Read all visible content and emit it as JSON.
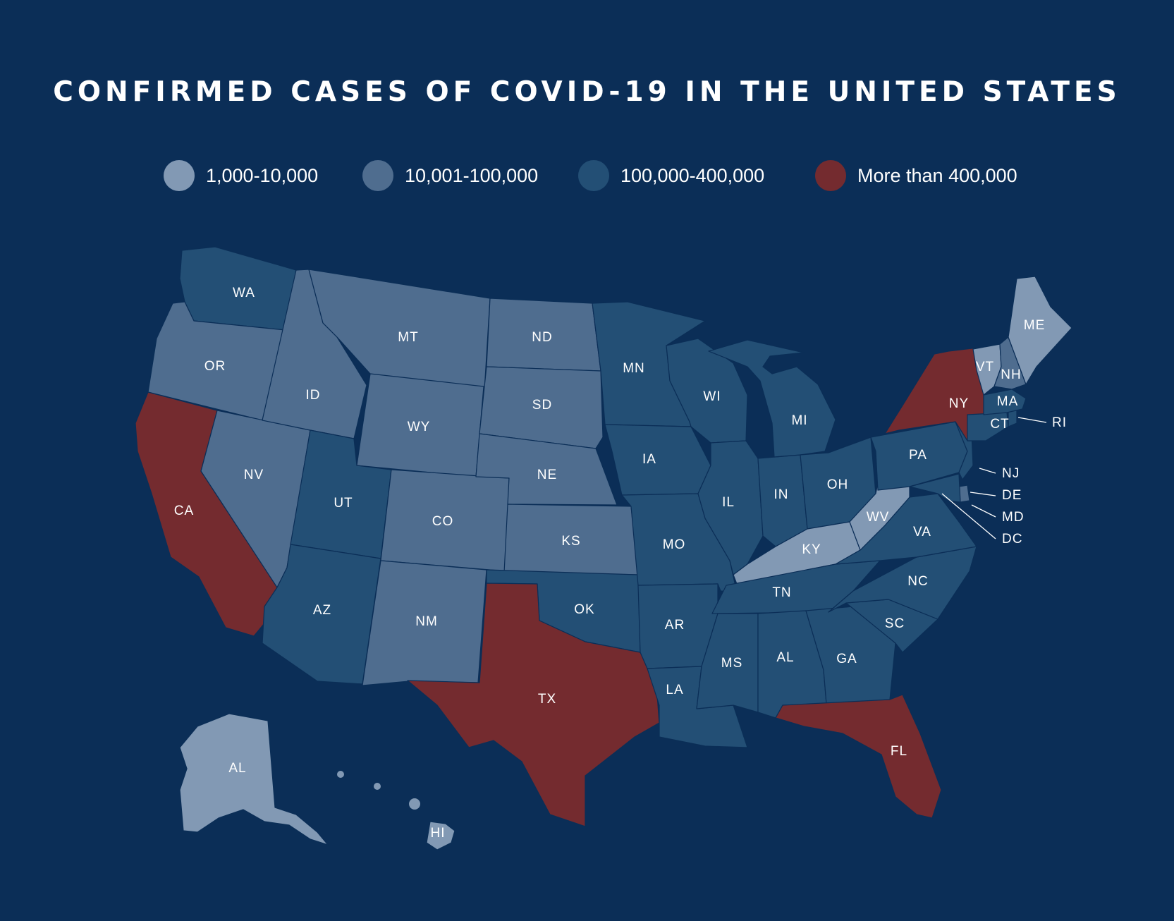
{
  "title": "CONFIRMED CASES OF COVID-19 IN THE UNITED STATES",
  "legend": [
    {
      "label": "1,000-10,000",
      "color": "#8299b4"
    },
    {
      "label": "10,001-100,000",
      "color": "#4f6d8f"
    },
    {
      "label": "100,000-400,000",
      "color": "#234f75"
    },
    {
      "label": "More than 400,000",
      "color": "#742b2f"
    }
  ],
  "states": {
    "WA": "WA",
    "OR": "OR",
    "CA": "CA",
    "ID": "ID",
    "NV": "NV",
    "MT": "MT",
    "WY": "WY",
    "UT": "UT",
    "AZ": "AZ",
    "CO": "CO",
    "NM": "NM",
    "ND": "ND",
    "SD": "SD",
    "NE": "NE",
    "KS": "KS",
    "OK": "OK",
    "TX": "TX",
    "MN": "MN",
    "IA": "IA",
    "MO": "MO",
    "AR": "AR",
    "LA": "LA",
    "WI": "WI",
    "IL": "IL",
    "MI": "MI",
    "IN": "IN",
    "OH": "OH",
    "KY": "KY",
    "TN": "TN",
    "MS": "MS",
    "AL": "AL",
    "GA": "GA",
    "FL": "FL",
    "SC": "SC",
    "NC": "NC",
    "VA": "VA",
    "WV": "WV",
    "PA": "PA",
    "NY": "NY",
    "VT": "VT",
    "NH": "NH",
    "ME": "ME",
    "MA": "MA",
    "CT": "CT",
    "AK_LABEL": "AL",
    "HI": "HI"
  },
  "callouts": {
    "RI": "RI",
    "NJ": "NJ",
    "DE": "DE",
    "MD": "MD",
    "DC": "DC"
  }
}
